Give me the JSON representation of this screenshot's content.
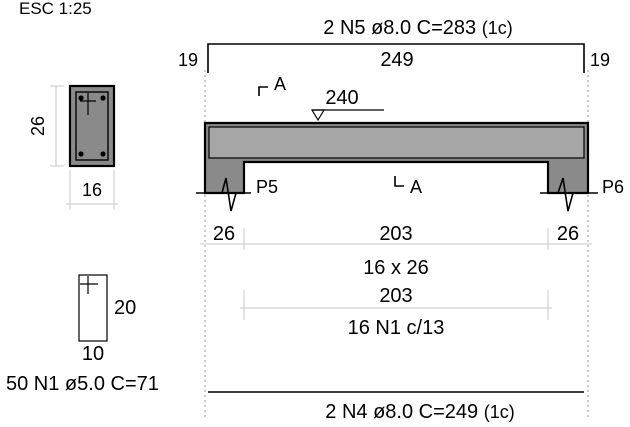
{
  "scale_label": "ESC 1:25",
  "section": {
    "height": "26",
    "width": "16"
  },
  "top_bar": {
    "label": "2 N5 ø8.0  C=283",
    "layer": "(1c)",
    "left_hook": "19",
    "length": "249",
    "right_hook": "19"
  },
  "cut": {
    "mark_top": "A",
    "mark_bottom": "A"
  },
  "level": "240",
  "supports": {
    "left": "P5",
    "right": "P6"
  },
  "spans": {
    "left": "26",
    "middle": "203",
    "right": "26",
    "section_size": "16 x 26"
  },
  "stirrup_zone": {
    "length": "203",
    "label": "16 N1 c/13"
  },
  "stirrup": {
    "height": "20",
    "width": "10",
    "label": "50 N1 ø5.0  C=71"
  },
  "bottom_bar": {
    "label": "2 N4 ø8.0  C=249",
    "layer": "(1c)"
  },
  "colors": {
    "concrete": "#8a8a8a",
    "concrete_light": "#a6a6a6",
    "dimension_line": "#c8c8c8",
    "ink": "#000000"
  }
}
